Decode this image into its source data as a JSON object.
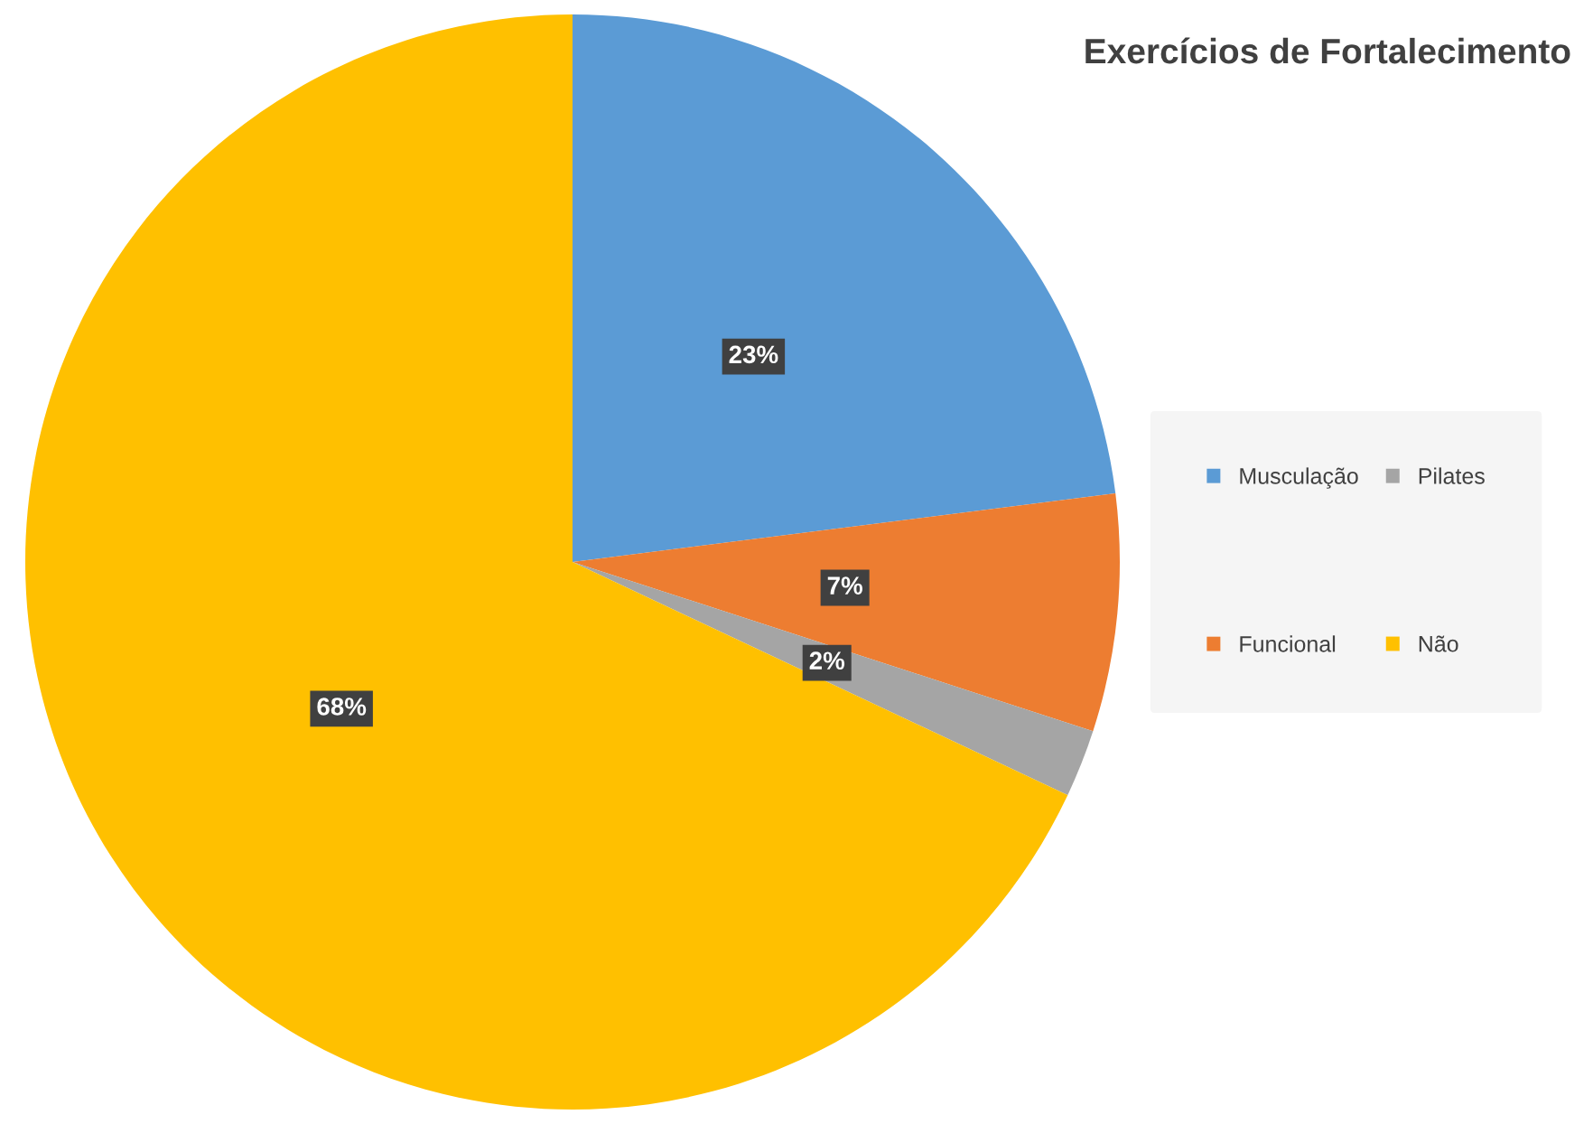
{
  "chart_data": {
    "type": "pie",
    "title": "Exercícios de Fortalecimento",
    "categories": [
      "Musculação",
      "Funcional",
      "Pilates",
      "Não"
    ],
    "values": [
      23,
      7,
      2,
      68
    ],
    "colors": [
      "#5b9bd5",
      "#ed7d31",
      "#a5a5a5",
      "#ffc000"
    ],
    "value_labels": [
      "23%",
      "7%",
      "2%",
      "68%"
    ],
    "legend": "right"
  }
}
